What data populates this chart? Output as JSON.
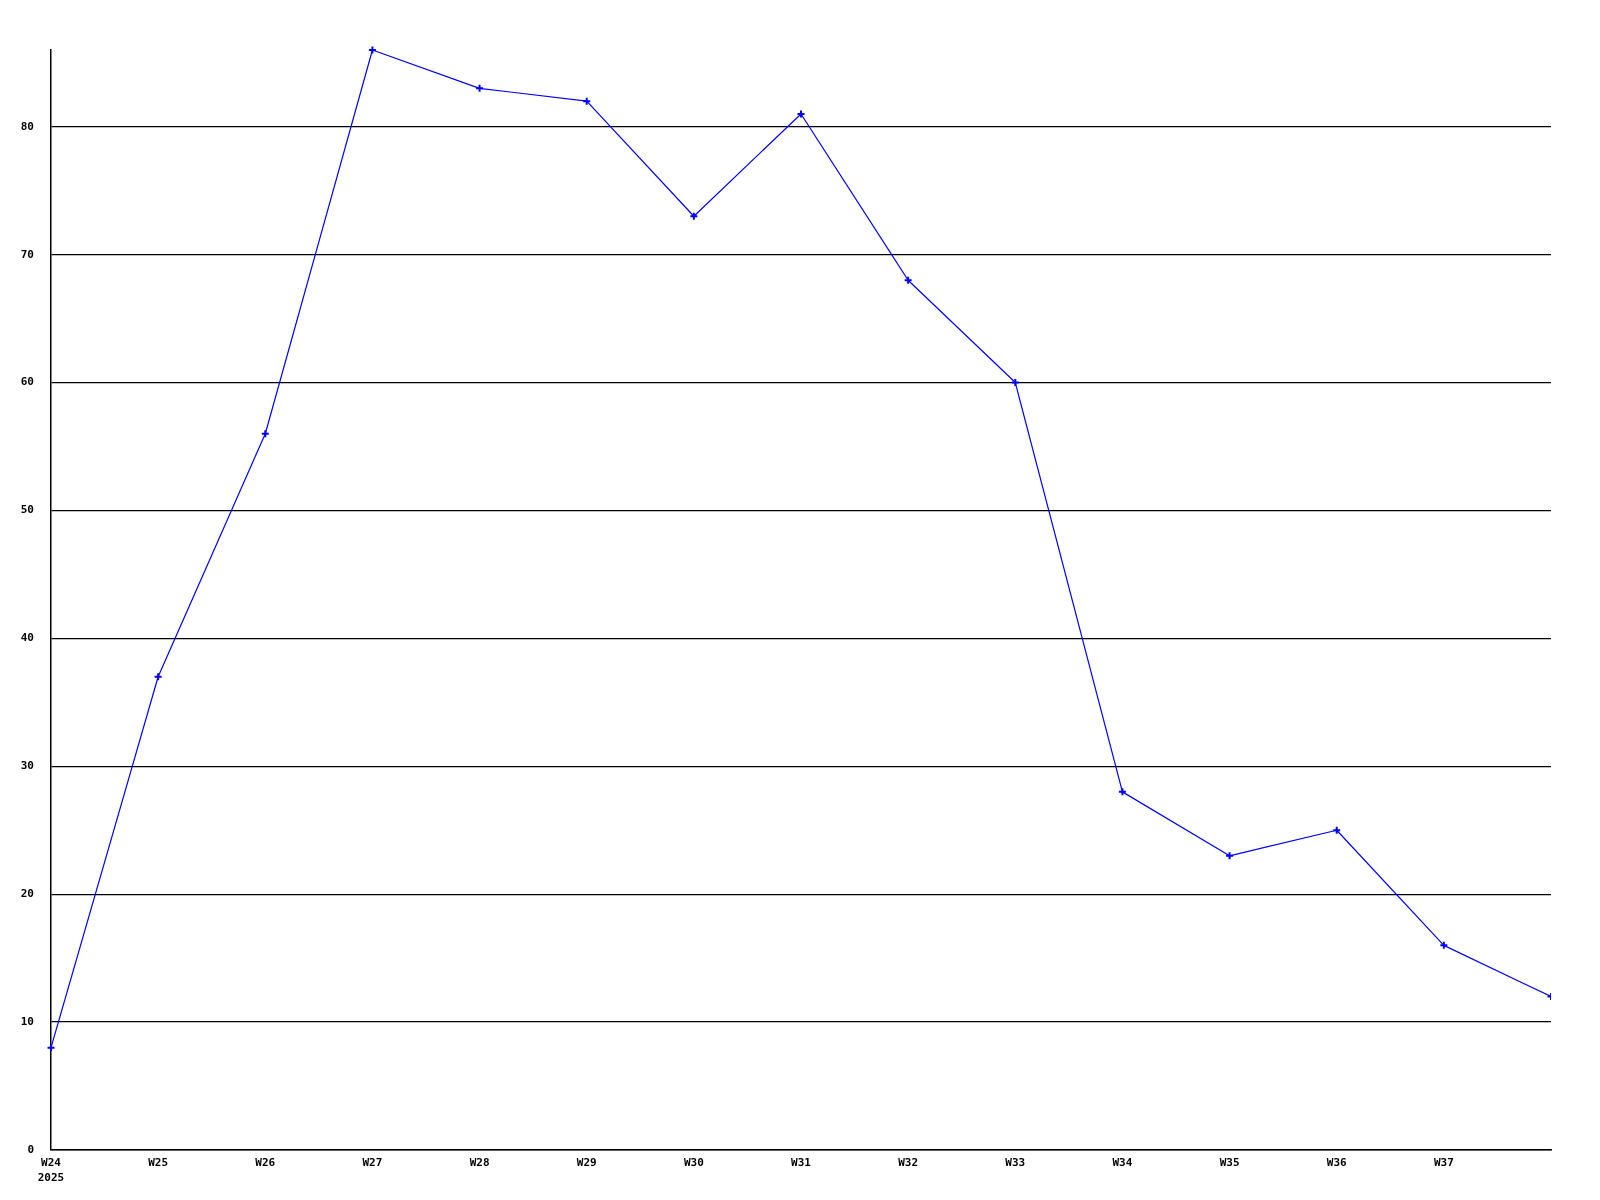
{
  "chart_data": {
    "type": "line",
    "categories": [
      "W24\n2025",
      "W25",
      "W26",
      "W27",
      "W28",
      "W29",
      "W30",
      "W31",
      "W32",
      "W33",
      "W34",
      "W35",
      "W36",
      "W37",
      null
    ],
    "series": [
      {
        "color": "#0000ff",
        "values": [
          8,
          37,
          56,
          86,
          83,
          82,
          73,
          81,
          68,
          60,
          28,
          23,
          25,
          16,
          12
        ]
      }
    ],
    "ylim": [
      0,
      86
    ],
    "yticks": [
      0,
      10,
      20,
      30,
      40,
      50,
      60,
      70,
      80
    ],
    "grid": "y",
    "legend": false,
    "marker": "cross",
    "line_style": "solid"
  }
}
